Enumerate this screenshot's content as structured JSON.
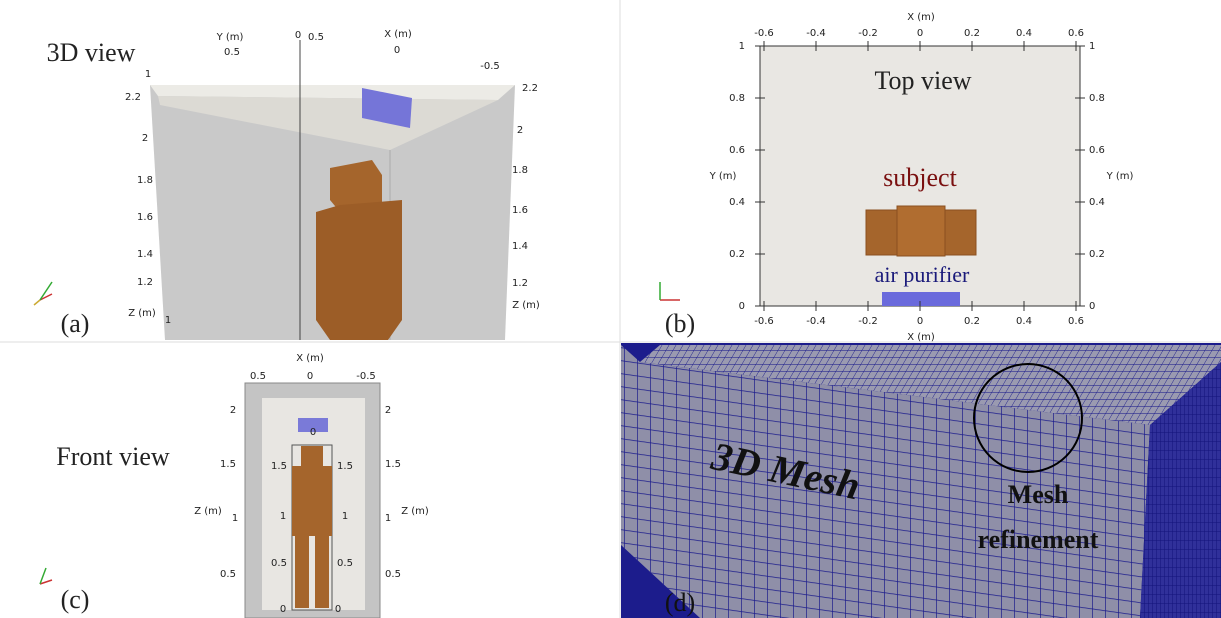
{
  "panel_a": {
    "title": "3D view",
    "label": "(a)",
    "axis_texts": [
      "Y (m)",
      "0.5",
      "0",
      "0.5",
      "X (m)",
      "0",
      "-0.5",
      "1",
      "2.2",
      "2",
      "1.8",
      "1.6",
      "1.4",
      "1.2",
      "Z (m)",
      "1",
      "2.2",
      "2",
      "1.8",
      "1.6",
      "1.4",
      "1.2",
      "Z (m)"
    ]
  },
  "panel_b": {
    "title": "Top view",
    "label": "(b)",
    "x_axis_label": "X (m)",
    "y_axis_label": "Y (m)",
    "x_ticks": [
      "-0.6",
      "-0.4",
      "-0.2",
      "0",
      "0.2",
      "0.4",
      "0.6"
    ],
    "y_ticks": [
      "1",
      "0.8",
      "0.6",
      "0.4",
      "0.2",
      "0"
    ],
    "subject_label": "subject",
    "purifier_label": "air purifier"
  },
  "panel_c": {
    "title": "Front view",
    "label": "(c)",
    "axis_texts": [
      "X (m)",
      "0.5",
      "0",
      "-0.5",
      "2",
      "1.5",
      "1",
      "0.5",
      "2",
      "1.5",
      "1",
      "0.5",
      "Z (m)",
      "Z (m)",
      "0",
      "1.5",
      "1.5",
      "1",
      "1",
      "0.5",
      "0.5",
      "0",
      "0"
    ]
  },
  "panel_d": {
    "title": "3D Mesh",
    "label": "(d)",
    "annotation": [
      "Mesh",
      "refinement"
    ]
  }
}
